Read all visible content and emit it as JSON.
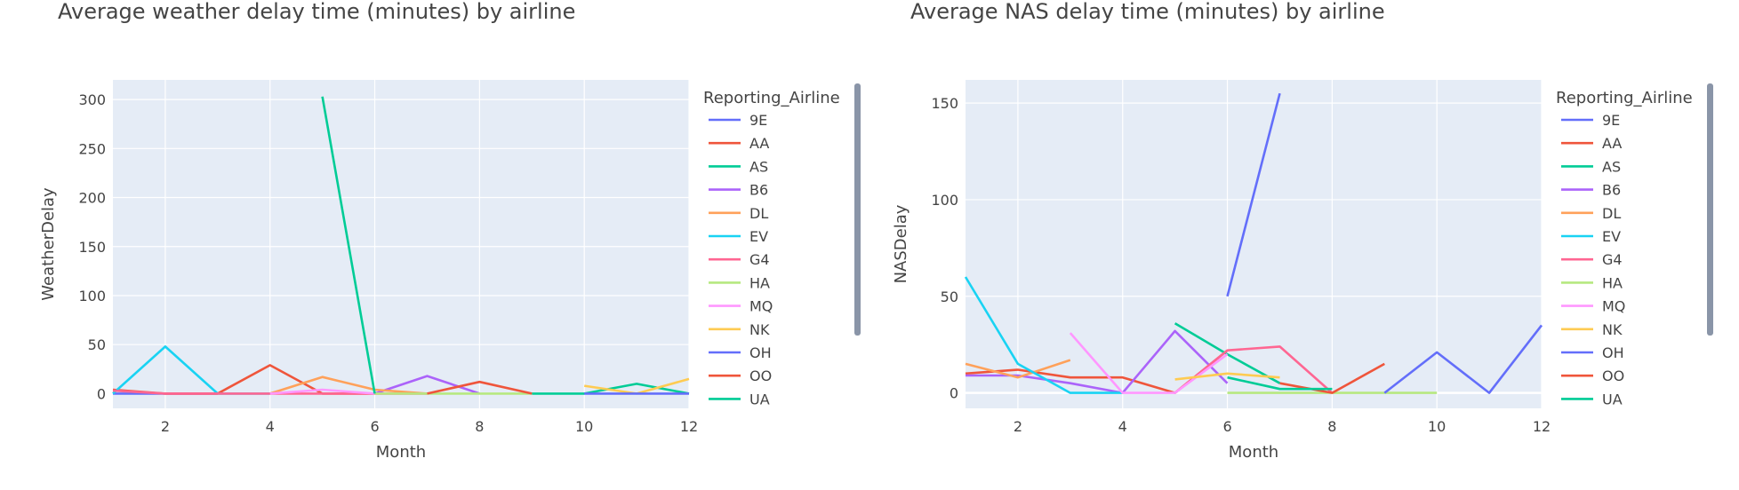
{
  "chart_data": [
    {
      "type": "line",
      "title": "Average weather delay time (minutes) by airline",
      "xlabel": "Month",
      "ylabel": "WeatherDelay",
      "xlim": [
        1,
        12
      ],
      "ylim": [
        -15,
        320
      ],
      "x_ticks": [
        2,
        4,
        6,
        8,
        10,
        12
      ],
      "y_ticks": [
        0,
        50,
        100,
        150,
        200,
        250,
        300
      ],
      "grid": true,
      "legend_title": "Reporting_Airline",
      "legend_position": "right",
      "series": [
        {
          "name": "9E",
          "color": "#636efa",
          "x": [
            1,
            2,
            3
          ],
          "y": [
            0,
            0,
            0
          ]
        },
        {
          "name": "AA",
          "color": "#ef553b",
          "x": [
            1,
            2,
            3,
            4,
            5,
            6
          ],
          "y": [
            4,
            0,
            0,
            29,
            0,
            0
          ]
        },
        {
          "name": "AS",
          "color": "#00cc96",
          "x": [
            9,
            10,
            11,
            12
          ],
          "y": [
            0,
            0,
            10,
            0
          ]
        },
        {
          "name": "B6",
          "color": "#ab63fa",
          "x": [
            6,
            7,
            8
          ],
          "y": [
            0,
            18,
            0
          ]
        },
        {
          "name": "DL",
          "color": "#ffa15a",
          "x": [
            4,
            5,
            6,
            7
          ],
          "y": [
            0,
            17,
            4,
            0
          ]
        },
        {
          "name": "EV",
          "color": "#19d3f3",
          "x": [
            1,
            2,
            3,
            4
          ],
          "y": [
            0,
            48,
            0,
            0
          ]
        },
        {
          "name": "G4",
          "color": "#ff6692",
          "x": [
            1,
            2,
            3,
            4,
            5,
            6,
            7
          ],
          "y": [
            3,
            0,
            0,
            0,
            0,
            0,
            0
          ]
        },
        {
          "name": "HA",
          "color": "#b6e880",
          "x": [
            6,
            7,
            8,
            9
          ],
          "y": [
            0,
            0,
            0,
            0
          ]
        },
        {
          "name": "MQ",
          "color": "#ff97ff",
          "x": [
            4,
            5,
            6
          ],
          "y": [
            0,
            4,
            0
          ]
        },
        {
          "name": "NK",
          "color": "#fecb52",
          "x": [
            10,
            11,
            12
          ],
          "y": [
            8,
            0,
            15
          ]
        },
        {
          "name": "OH",
          "color": "#636efa",
          "x": [
            10,
            11,
            12
          ],
          "y": [
            0,
            0,
            0
          ]
        },
        {
          "name": "OO",
          "color": "#ef553b",
          "x": [
            7,
            8,
            9
          ],
          "y": [
            0,
            12,
            0
          ]
        },
        {
          "name": "UA",
          "color": "#00cc96",
          "x": [
            5,
            6
          ],
          "y": [
            303,
            0
          ]
        }
      ]
    },
    {
      "type": "line",
      "title": "Average NAS delay time (minutes) by airline",
      "xlabel": "Month",
      "ylabel": "NASDelay",
      "xlim": [
        1,
        12
      ],
      "ylim": [
        -8,
        162
      ],
      "x_ticks": [
        2,
        4,
        6,
        8,
        10,
        12
      ],
      "y_ticks": [
        0,
        50,
        100,
        150
      ],
      "grid": true,
      "legend_title": "Reporting_Airline",
      "legend_position": "right",
      "series": [
        {
          "name": "9E",
          "color": "#636efa",
          "x": [
            6,
            7
          ],
          "y": [
            50,
            155
          ]
        },
        {
          "name": "AA",
          "color": "#ef553b",
          "x": [
            1,
            2,
            3,
            4,
            5,
            6
          ],
          "y": [
            10,
            12,
            8,
            8,
            0,
            22
          ]
        },
        {
          "name": "AS",
          "color": "#00cc96",
          "x": [
            5,
            6,
            7
          ],
          "y": [
            36,
            20,
            5
          ]
        },
        {
          "name": "B6",
          "color": "#ab63fa",
          "x": [
            1,
            2,
            3,
            4,
            5,
            6
          ],
          "y": [
            9,
            9,
            5,
            0,
            32,
            5
          ]
        },
        {
          "name": "DL",
          "color": "#ffa15a",
          "x": [
            1,
            2,
            3
          ],
          "y": [
            15,
            8,
            17
          ]
        },
        {
          "name": "EV",
          "color": "#19d3f3",
          "x": [
            1,
            2,
            3,
            4
          ],
          "y": [
            60,
            15,
            0,
            0
          ]
        },
        {
          "name": "G4",
          "color": "#ff6692",
          "x": [
            5,
            6,
            7,
            8
          ],
          "y": [
            0,
            22,
            24,
            0
          ]
        },
        {
          "name": "HA",
          "color": "#b6e880",
          "x": [
            6,
            7,
            8,
            9,
            10
          ],
          "y": [
            0,
            0,
            0,
            0,
            0
          ]
        },
        {
          "name": "MQ",
          "color": "#ff97ff",
          "x": [
            3,
            4,
            5,
            6
          ],
          "y": [
            31,
            0,
            0,
            20
          ]
        },
        {
          "name": "NK",
          "color": "#fecb52",
          "x": [
            5,
            6,
            7
          ],
          "y": [
            7,
            10,
            8
          ]
        },
        {
          "name": "OH",
          "color": "#636efa",
          "x": [
            9,
            10,
            11,
            12
          ],
          "y": [
            0,
            21,
            0,
            35
          ]
        },
        {
          "name": "OO",
          "color": "#ef553b",
          "x": [
            7,
            8,
            9
          ],
          "y": [
            5,
            0,
            15
          ]
        },
        {
          "name": "UA",
          "color": "#00cc96",
          "x": [
            6,
            7,
            8
          ],
          "y": [
            8,
            2,
            2
          ]
        }
      ]
    }
  ]
}
